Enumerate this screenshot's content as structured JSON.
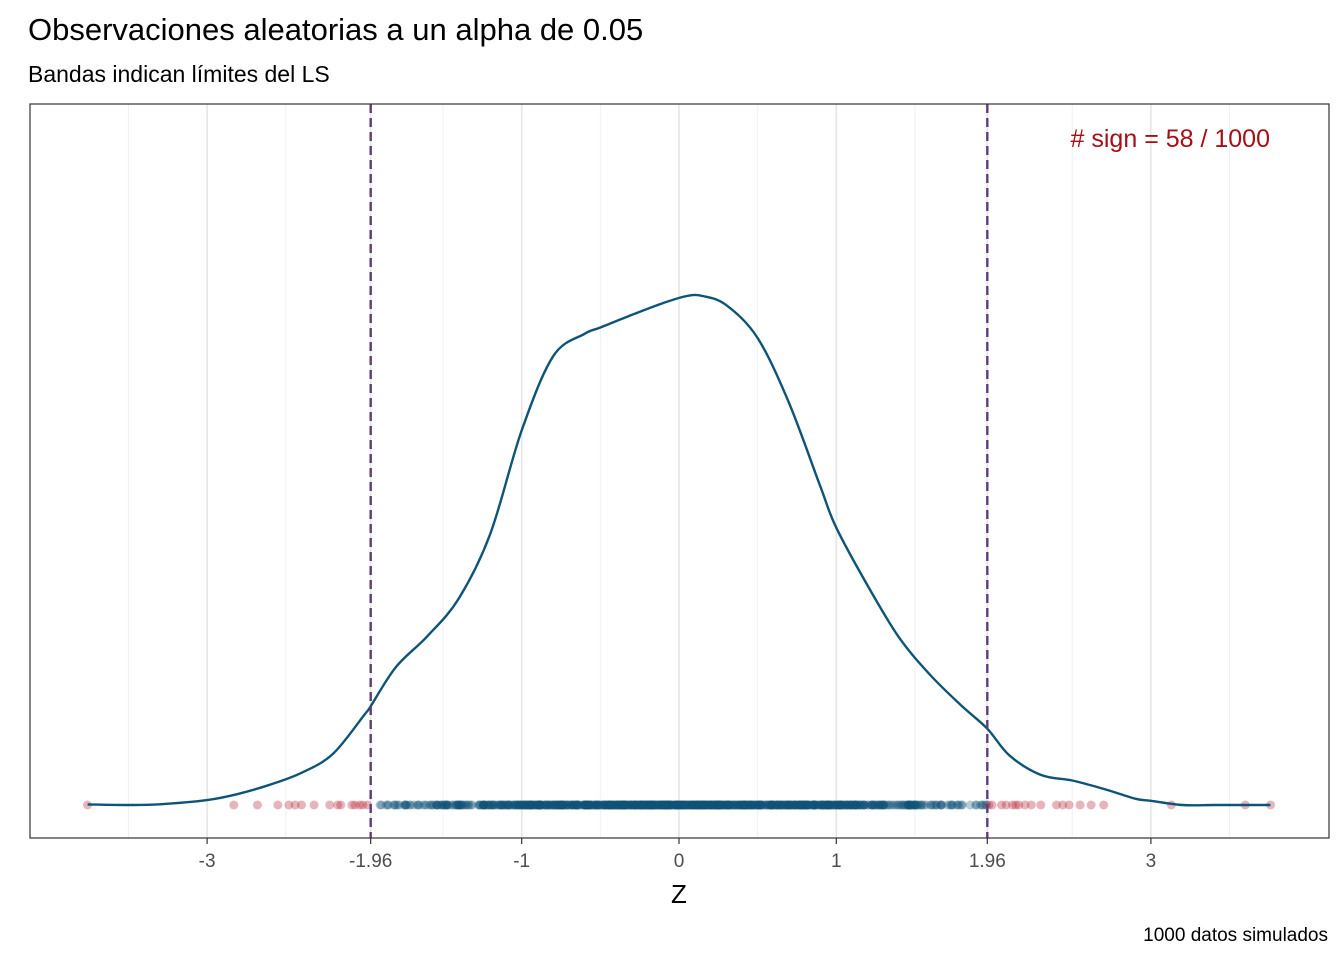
{
  "chart_data": {
    "type": "density-rug",
    "title": "Observaciones aleatorias a un alpha de 0.05",
    "subtitle": "Bandas indican límites del LS",
    "xlabel": "Z",
    "ylabel": "",
    "caption": "1000  datos simulados",
    "annotation": "# sign =  58 / 1000",
    "xlim": [
      -4.08,
      4.08
    ],
    "ylim": [
      0,
      0.44
    ],
    "x_ticks": [
      {
        "value": -3,
        "label": "-3"
      },
      {
        "value": -1.96,
        "label": "-1.96"
      },
      {
        "value": -1,
        "label": "-1"
      },
      {
        "value": 0,
        "label": "0"
      },
      {
        "value": 1,
        "label": "1"
      },
      {
        "value": 1.96,
        "label": "1.96"
      },
      {
        "value": 3,
        "label": "3"
      }
    ],
    "minor_gridlines": [
      -3.5,
      -2.5,
      -1.5,
      -0.5,
      0.5,
      1.5,
      2.5,
      3.5
    ],
    "grid": true,
    "critical_lines": [
      -1.96,
      1.96
    ],
    "n_total": 1000,
    "n_significant": 58,
    "density": {
      "x": [
        -3.76,
        -3.5,
        -3.3,
        -3.0,
        -2.8,
        -2.6,
        -2.4,
        -2.2,
        -2.0,
        -1.96,
        -1.8,
        -1.6,
        -1.4,
        -1.2,
        -1.0,
        -0.8,
        -0.6,
        -0.5,
        -0.3,
        -0.1,
        0.05,
        0.15,
        0.3,
        0.5,
        0.7,
        0.9,
        1.0,
        1.2,
        1.4,
        1.6,
        1.8,
        1.96,
        2.1,
        2.3,
        2.5,
        2.7,
        2.9,
        3.0,
        3.2,
        3.4,
        3.6,
        3.76
      ],
      "y": [
        0.0004,
        0.0,
        0.0005,
        0.0035,
        0.008,
        0.0145,
        0.023,
        0.0365,
        0.0645,
        0.0705,
        0.0985,
        0.1205,
        0.1475,
        0.1935,
        0.2675,
        0.3205,
        0.3365,
        0.341,
        0.35,
        0.3585,
        0.3635,
        0.3635,
        0.357,
        0.3335,
        0.287,
        0.227,
        0.198,
        0.1565,
        0.1195,
        0.0925,
        0.0705,
        0.0545,
        0.0355,
        0.0215,
        0.0175,
        0.0115,
        0.0045,
        0.003,
        0.0,
        0.0,
        0.0,
        0.0
      ]
    },
    "significant_points": [
      -3.76,
      -2.83,
      -2.68,
      -2.55,
      -2.48,
      -2.44,
      -2.4,
      -2.32,
      -2.22,
      -2.17,
      -2.15,
      -2.08,
      -2.06,
      -2.03,
      -2.01,
      -1.98,
      1.97,
      1.99,
      2.05,
      2.08,
      2.12,
      2.14,
      2.16,
      2.2,
      2.24,
      2.3,
      2.4,
      2.44,
      2.48,
      2.55,
      2.62,
      2.7,
      3.13,
      3.6,
      3.76
    ],
    "point_colors": {
      "significant": "#b2182b",
      "non_significant": "#0f5478"
    },
    "line_colors": {
      "density": "#0f5478",
      "critical": "#5e3c7b",
      "annotation": "#a50f15"
    }
  }
}
